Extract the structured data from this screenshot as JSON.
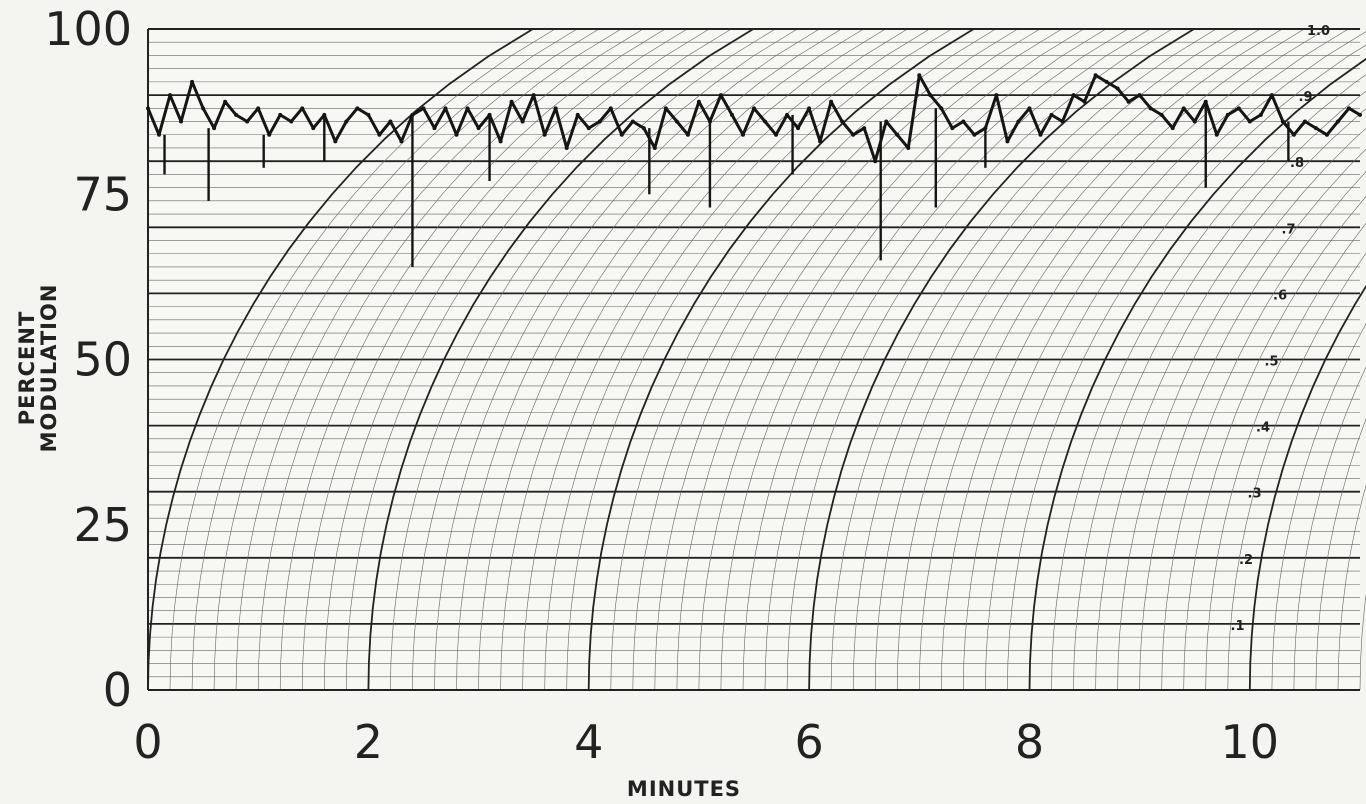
{
  "chart_data": {
    "type": "line",
    "title": "",
    "xlabel": "MINUTES",
    "ylabel_lines": [
      "PERCENT",
      "MODULATION"
    ],
    "xlim": [
      0,
      11
    ],
    "ylim": [
      0,
      100
    ],
    "x_ticks": [
      "0",
      "2",
      "4",
      "6",
      "8",
      "10"
    ],
    "y_ticks": [
      "0",
      "25",
      "50",
      "75",
      "100"
    ],
    "secondary_scale_labels": [
      ".1",
      ".2",
      ".3",
      ".4",
      ".5",
      ".6",
      ".7",
      ".8",
      ".9",
      "1.0"
    ],
    "grid": true,
    "series": [
      {
        "x": [
          0,
          0.1,
          0.2,
          0.3,
          0.4,
          0.5,
          0.6,
          0.7,
          0.8,
          0.9,
          1.0,
          1.1,
          1.2,
          1.3,
          1.4,
          1.5,
          1.6,
          1.7,
          1.8,
          1.9,
          2.0,
          2.1,
          2.2,
          2.3,
          2.4,
          2.5,
          2.6,
          2.7,
          2.8,
          2.9,
          3.0,
          3.1,
          3.2,
          3.3,
          3.4,
          3.5,
          3.6,
          3.7,
          3.8,
          3.9,
          4.0,
          4.1,
          4.2,
          4.3,
          4.4,
          4.5,
          4.6,
          4.7,
          4.8,
          4.9,
          5.0,
          5.1,
          5.2,
          5.3,
          5.4,
          5.5,
          5.6,
          5.7,
          5.8,
          5.9,
          6.0,
          6.1,
          6.2,
          6.3,
          6.4,
          6.5,
          6.6,
          6.7,
          6.8,
          6.9,
          7.0,
          7.1,
          7.2,
          7.3,
          7.4,
          7.5,
          7.6,
          7.7,
          7.8,
          7.9,
          8.0,
          8.1,
          8.2,
          8.3,
          8.4,
          8.5,
          8.6,
          8.7,
          8.8,
          8.9,
          9.0,
          9.1,
          9.2,
          9.3,
          9.4,
          9.5,
          9.6,
          9.7,
          9.8,
          9.9,
          10.0,
          10.1,
          10.2,
          10.3,
          10.4,
          10.5,
          10.6,
          10.7,
          10.8,
          10.9,
          11.0
        ],
        "values": [
          88,
          84,
          90,
          86,
          92,
          88,
          85,
          89,
          87,
          86,
          88,
          84,
          87,
          86,
          88,
          85,
          87,
          83,
          86,
          88,
          87,
          84,
          86,
          83,
          87,
          88,
          85,
          88,
          84,
          88,
          85,
          87,
          83,
          89,
          86,
          90,
          84,
          88,
          82,
          87,
          85,
          86,
          88,
          84,
          86,
          85,
          82,
          88,
          86,
          84,
          89,
          86,
          90,
          87,
          84,
          88,
          86,
          84,
          87,
          85,
          88,
          83,
          89,
          86,
          84,
          85,
          80,
          86,
          84,
          82,
          93,
          90,
          88,
          85,
          86,
          84,
          85,
          90,
          83,
          86,
          88,
          84,
          87,
          86,
          90,
          89,
          93,
          92,
          91,
          89,
          90,
          88,
          87,
          85,
          88,
          86,
          89,
          84,
          87,
          88,
          86,
          87,
          90,
          86,
          84,
          86,
          85,
          84,
          86,
          88,
          87
        ],
        "dips": [
          [
            0.15,
            78
          ],
          [
            0.55,
            74
          ],
          [
            1.05,
            79
          ],
          [
            1.6,
            80
          ],
          [
            2.4,
            64
          ],
          [
            3.1,
            77
          ],
          [
            4.55,
            75
          ],
          [
            5.1,
            73
          ],
          [
            5.85,
            78
          ],
          [
            6.65,
            65
          ],
          [
            7.15,
            73
          ],
          [
            7.6,
            79
          ],
          [
            9.6,
            76
          ],
          [
            10.35,
            80
          ]
        ]
      }
    ]
  }
}
